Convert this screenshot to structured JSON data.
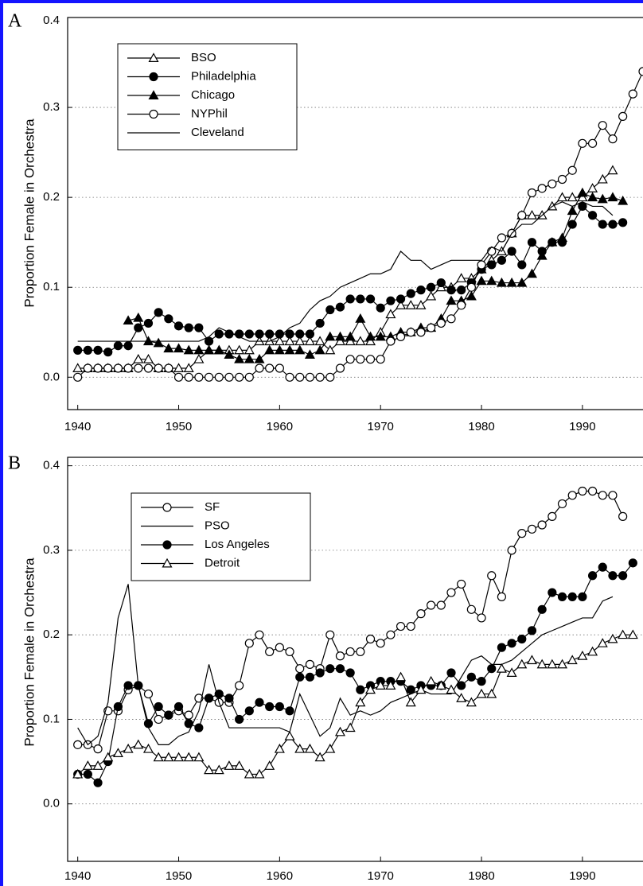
{
  "chart_data": [
    {
      "type": "line",
      "panel_label": "A",
      "y_label": "Proportion Female in Orchestra",
      "legend_position": "upper left",
      "grid": true,
      "xlim": [
        1939,
        1996
      ],
      "xticks": [
        1940,
        1950,
        1960,
        1970,
        1980,
        1990
      ],
      "ylim": [
        -0.036,
        0.4
      ],
      "yticks": [
        {
          "value": 0,
          "label": "0.0"
        },
        0.1,
        0.2,
        0.3,
        0.4
      ],
      "x": [
        1940,
        1941,
        1942,
        1943,
        1944,
        1945,
        1946,
        1947,
        1948,
        1949,
        1950,
        1951,
        1952,
        1953,
        1954,
        1955,
        1956,
        1957,
        1958,
        1959,
        1960,
        1961,
        1962,
        1963,
        1964,
        1965,
        1966,
        1967,
        1968,
        1969,
        1970,
        1971,
        1972,
        1973,
        1974,
        1975,
        1976,
        1977,
        1978,
        1979,
        1980,
        1981,
        1982,
        1983,
        1984,
        1985,
        1986,
        1987,
        1988,
        1989,
        1990,
        1991,
        1992,
        1993,
        1994,
        1995,
        1996
      ],
      "series": [
        {
          "name": "BSO",
          "color": "#000000",
          "marker": "triangle-open",
          "values": [
            0.01,
            0.01,
            0.01,
            0.01,
            0.01,
            0.01,
            0.02,
            0.02,
            0.01,
            0.01,
            0.01,
            0.01,
            0.02,
            0.03,
            0.03,
            0.03,
            0.03,
            0.03,
            0.04,
            0.04,
            0.04,
            0.04,
            0.04,
            0.04,
            0.04,
            0.03,
            0.04,
            0.04,
            0.04,
            0.04,
            0.05,
            0.07,
            0.08,
            0.08,
            0.08,
            0.09,
            0.1,
            0.1,
            0.11,
            0.11,
            0.12,
            0.13,
            0.14,
            0.16,
            0.18,
            0.18,
            0.18,
            0.19,
            0.2,
            0.2,
            0.2,
            0.21,
            0.22,
            0.23,
            null,
            null,
            null
          ]
        },
        {
          "name": "Philadelphia",
          "color": "#000000",
          "marker": "circle-filled",
          "values": [
            0.03,
            0.03,
            0.03,
            0.028,
            0.035,
            0.035,
            0.055,
            0.06,
            0.072,
            0.065,
            0.057,
            0.055,
            0.055,
            0.04,
            0.048,
            0.048,
            0.048,
            0.048,
            0.048,
            0.048,
            0.048,
            0.048,
            0.048,
            0.048,
            0.06,
            0.075,
            0.078,
            0.087,
            0.087,
            0.087,
            0.077,
            0.085,
            0.087,
            0.093,
            0.097,
            0.1,
            0.105,
            0.097,
            0.097,
            0.105,
            0.12,
            0.125,
            0.13,
            0.14,
            0.125,
            0.15,
            0.14,
            0.15,
            0.15,
            0.17,
            0.19,
            0.18,
            0.17,
            0.17,
            0.172,
            null,
            null
          ]
        },
        {
          "name": "Chicago",
          "color": "#000000",
          "marker": "triangle-filled",
          "values": [
            null,
            null,
            null,
            null,
            null,
            0.063,
            0.066,
            0.04,
            0.038,
            0.032,
            0.032,
            0.03,
            0.03,
            0.03,
            0.03,
            0.025,
            0.02,
            0.02,
            0.02,
            0.03,
            0.03,
            0.03,
            0.03,
            0.025,
            0.03,
            0.045,
            0.045,
            0.045,
            0.065,
            0.045,
            0.045,
            0.045,
            0.05,
            0.05,
            0.055,
            0.055,
            0.065,
            0.085,
            0.085,
            0.09,
            0.107,
            0.107,
            0.105,
            0.105,
            0.105,
            0.115,
            0.135,
            0.15,
            0.155,
            0.185,
            0.205,
            0.2,
            0.198,
            0.2,
            0.196,
            null,
            null
          ]
        },
        {
          "name": "NYPhil",
          "color": "#000000",
          "marker": "circle-open",
          "values": [
            0,
            0.01,
            0.01,
            0.01,
            0.01,
            0.01,
            0.01,
            0.01,
            0.01,
            0.01,
            0,
            0,
            0,
            0,
            0,
            0,
            0,
            0,
            0.01,
            0.01,
            0.01,
            0,
            0,
            0,
            0,
            0,
            0.01,
            0.02,
            0.02,
            0.02,
            0.02,
            0.04,
            0.045,
            0.05,
            0.05,
            0.055,
            0.06,
            0.065,
            0.08,
            0.1,
            0.125,
            0.14,
            0.155,
            0.16,
            0.18,
            0.205,
            0.21,
            0.215,
            0.22,
            0.23,
            0.26,
            0.26,
            0.28,
            0.265,
            0.29,
            0.315,
            0.34
          ]
        },
        {
          "name": "Cleveland",
          "color": "#000000",
          "marker": "none",
          "values": [
            0.04,
            0.04,
            0.04,
            0.04,
            0.04,
            0.04,
            0.04,
            0.04,
            0.04,
            0.04,
            0.04,
            0.04,
            0.04,
            0.045,
            0.055,
            0.05,
            0.045,
            0.04,
            0.04,
            0.04,
            0.045,
            0.055,
            0.06,
            0.075,
            0.085,
            0.09,
            0.1,
            0.105,
            0.11,
            0.115,
            0.115,
            0.12,
            0.14,
            0.13,
            0.13,
            0.12,
            0.125,
            0.13,
            0.13,
            0.13,
            0.13,
            0.145,
            0.14,
            0.16,
            0.17,
            0.17,
            0.18,
            0.19,
            0.195,
            0.19,
            0.195,
            0.19,
            0.19,
            0.18,
            null,
            null,
            null
          ]
        }
      ]
    },
    {
      "type": "line",
      "panel_label": "B",
      "y_label": "Proportion Female in Orchestra",
      "legend_position": "upper left",
      "grid": true,
      "xlim": [
        1939,
        1996
      ],
      "xticks": [
        1940,
        1950,
        1960,
        1970,
        1980,
        1990
      ],
      "ylim": [
        -0.068,
        0.41
      ],
      "yticks": [
        {
          "value": 0,
          "label": "0.0"
        },
        0.1,
        0.2,
        0.3,
        0.4
      ],
      "x": [
        1940,
        1941,
        1942,
        1943,
        1944,
        1945,
        1946,
        1947,
        1948,
        1949,
        1950,
        1951,
        1952,
        1953,
        1954,
        1955,
        1956,
        1957,
        1958,
        1959,
        1960,
        1961,
        1962,
        1963,
        1964,
        1965,
        1966,
        1967,
        1968,
        1969,
        1970,
        1971,
        1972,
        1973,
        1974,
        1975,
        1976,
        1977,
        1978,
        1979,
        1980,
        1981,
        1982,
        1983,
        1984,
        1985,
        1986,
        1987,
        1988,
        1989,
        1990,
        1991,
        1992,
        1993,
        1994,
        1995,
        1996
      ],
      "series": [
        {
          "name": "SF",
          "color": "#000000",
          "marker": "circle-open",
          "values": [
            0.07,
            0.07,
            0.065,
            0.11,
            0.11,
            0.135,
            0.14,
            0.13,
            0.1,
            0.105,
            0.11,
            0.105,
            0.125,
            0.125,
            0.12,
            0.12,
            0.14,
            0.19,
            0.2,
            0.18,
            0.185,
            0.18,
            0.16,
            0.165,
            0.16,
            0.2,
            0.175,
            0.18,
            0.18,
            0.195,
            0.19,
            0.2,
            0.21,
            0.21,
            0.225,
            0.235,
            0.235,
            0.25,
            0.26,
            0.23,
            0.22,
            0.27,
            0.245,
            0.3,
            0.32,
            0.325,
            0.33,
            0.34,
            0.355,
            0.365,
            0.37,
            0.37,
            0.365,
            0.365,
            0.34,
            null,
            null
          ]
        },
        {
          "name": "PSO",
          "color": "#000000",
          "marker": "none",
          "values": [
            0.09,
            0.07,
            0.08,
            0.12,
            0.22,
            0.26,
            0.14,
            0.09,
            0.07,
            0.07,
            0.08,
            0.085,
            0.11,
            0.165,
            0.12,
            0.09,
            0.09,
            0.09,
            0.09,
            0.09,
            0.09,
            0.085,
            0.13,
            0.105,
            0.08,
            0.09,
            0.125,
            0.105,
            0.11,
            0.105,
            0.11,
            0.12,
            0.125,
            0.13,
            0.135,
            0.13,
            0.13,
            0.13,
            0.15,
            0.17,
            0.175,
            0.165,
            0.165,
            0.17,
            0.18,
            0.19,
            0.2,
            0.205,
            0.21,
            0.215,
            0.22,
            0.22,
            0.24,
            0.245,
            null,
            null,
            null
          ]
        },
        {
          "name": "Los Angeles",
          "color": "#000000",
          "marker": "circle-filled",
          "values": [
            0.035,
            0.035,
            0.025,
            0.05,
            0.115,
            0.14,
            0.14,
            0.095,
            0.115,
            0.105,
            0.115,
            0.095,
            0.09,
            0.125,
            0.13,
            0.125,
            0.1,
            0.11,
            0.12,
            0.115,
            0.115,
            0.11,
            0.15,
            0.15,
            0.155,
            0.16,
            0.16,
            0.155,
            0.135,
            0.14,
            0.145,
            0.145,
            0.145,
            0.135,
            0.14,
            0.14,
            0.14,
            0.155,
            0.14,
            0.15,
            0.145,
            0.16,
            0.185,
            0.19,
            0.195,
            0.205,
            0.23,
            0.25,
            0.245,
            0.245,
            0.245,
            0.27,
            0.28,
            0.27,
            0.27,
            0.285,
            null
          ]
        },
        {
          "name": "Detroit",
          "color": "#000000",
          "marker": "triangle-open",
          "values": [
            0.035,
            0.045,
            0.045,
            0.055,
            0.06,
            0.065,
            0.07,
            0.065,
            0.055,
            0.055,
            0.055,
            0.055,
            0.055,
            0.04,
            0.04,
            0.045,
            0.045,
            0.035,
            0.035,
            0.045,
            0.065,
            0.08,
            0.065,
            0.065,
            0.055,
            0.065,
            0.085,
            0.09,
            0.12,
            0.135,
            0.14,
            0.14,
            0.15,
            0.12,
            0.135,
            0.145,
            0.14,
            0.135,
            0.125,
            0.12,
            0.13,
            0.13,
            0.16,
            0.155,
            0.165,
            0.17,
            0.165,
            0.165,
            0.165,
            0.17,
            0.175,
            0.18,
            0.19,
            0.195,
            0.2,
            0.2,
            null
          ]
        }
      ]
    }
  ]
}
